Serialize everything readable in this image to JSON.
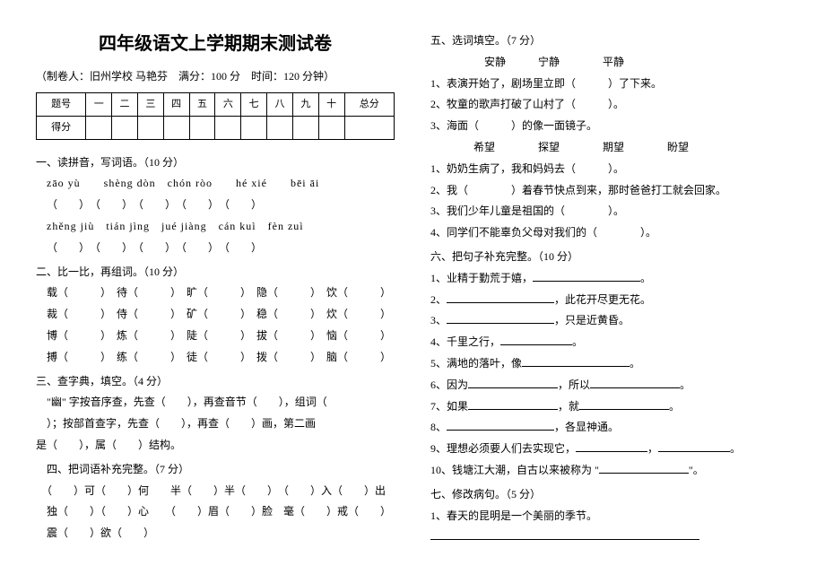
{
  "title": "四年级语文上学期期末测试卷",
  "subtitle": "（制卷人：旧州学校  马艳芬　满分：100 分　时间：120 分钟）",
  "score_headers": [
    "题号",
    "一",
    "二",
    "三",
    "四",
    "五",
    "六",
    "七",
    "八",
    "九",
    "十",
    "总分"
  ],
  "score_label": "得分",
  "s1": {
    "h": "一、读拼音，写词语。（10 分）",
    "row1": "zāo  yù　　shèng  dòn　chón  ròo　　hé  xié　　bēi  āi",
    "row2": "（　　）　（　　）　（　　）　（　　）　（　　）",
    "row3": "zhěng  jiù　tián  jìng　jué  jiàng　cán  kuì　fèn  zuì",
    "row4": "（　　）　（　　）　（　　）　（　　）　（　　）"
  },
  "s2": {
    "h": "二、比一比，再组词。（10 分）",
    "r1": "　载（　　　）　待（　　　）　旷（　　　）　隐（　　　）　饮（　　　）",
    "r2": "　裁（　　　）　侍（　　　）　矿（　　　）　稳（　　　）　炊（　　　）",
    "r3": "　博（　　　）　炼（　　　）　陡（　　　）　拔（　　　）　恼（　　　）",
    "r4": "　搏（　　　）　练（　　　）　徒（　　　）　拨（　　　）　脑（　　　）"
  },
  "s3": {
    "h": "三、查字典，填空。（4 分）",
    "l1": "　\"幽\" 字按音序查，先查（　　），再查音节（　　），组词（　　",
    "l2": "　）；按部首查字，先查（　　），再查（　　）画，第二画",
    "l3": "是（　　），属（　　）结构。"
  },
  "s4": {
    "h": "　四、把词语补充完整。（7 分）",
    "r1": "　（　　）可（　　）何　　半（　　）半（　　）　（　　）入（　　）出",
    "r2": "　独（　　）（　　）心　　（　　）眉（　　）脸　毫（　　）戒（　　）",
    "r3": "　震（　　）欲（　　）"
  },
  "s5": {
    "h": "五、选词填空。（7 分）",
    "words1": "　　　　　安静　　　宁静　　　　平静",
    "l1": "1、表演开始了，剧场里立即（　　　）了下来。",
    "l2": "2、牧童的歌声打破了山村了（　　　）。",
    "l3": "3、海面（　　　）的像一面镜子。",
    "words2": "　　　　希望　　　　探望　　　　期望　　　　盼望",
    "l4": "1、奶奶生病了，我和妈妈去（　　　）。",
    "l5": "2、我（　　　　）着春节快点到来，那时爸爸打工就会回家。",
    "l6": "3、我们少年儿童是祖国的（　　　　）。",
    "l7": "4、同学们不能辜负父母对我们的（　　　　）。"
  },
  "s6": {
    "h": "六、把句子补充完整。（10 分）",
    "p1": "1、业精于勤荒于嬉，",
    "p2a": "2、",
    "p2b": "，此花开尽更无花。",
    "p3a": "3、",
    "p3b": "，只是近黄昏。",
    "p4": "4、千里之行，",
    "p5a": "5、满地的落叶，像",
    "p6a": "6、因为",
    "p6b": "，所以",
    "p7a": "7、如果",
    "p7b": "，就",
    "p8a": "8、",
    "p8b": "，各显神通。",
    "p9": "9、理想必须要人们去实现它，",
    "p10a": "10、钱塘江大潮，自古以来被称为 \"",
    "p10b": "\"。"
  },
  "s7": {
    "h": "七、修改病句。（5 分）",
    "l1": "1、春天的昆明是一个美丽的季节。"
  }
}
